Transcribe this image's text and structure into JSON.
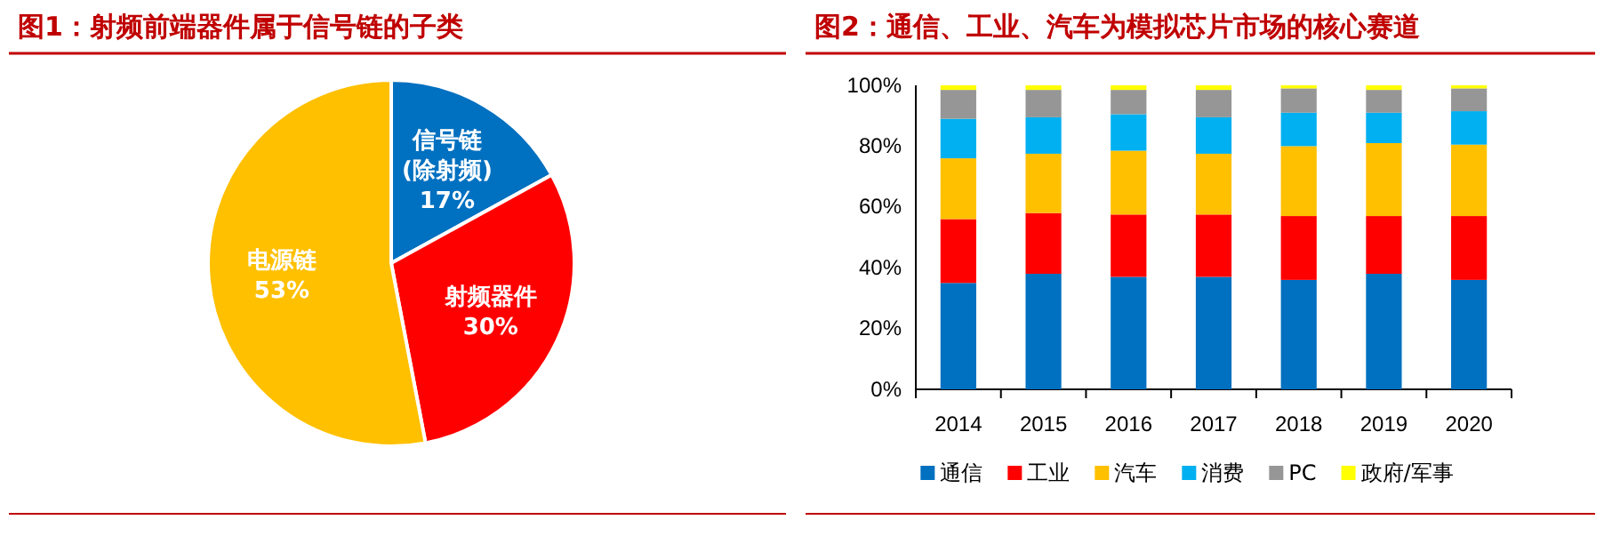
{
  "chart_data": [
    {
      "type": "pie",
      "title": "图1：射频前端器件属于信号链的子类",
      "categories": [
        "信号链\n(除射频)",
        "射频器件",
        "电源链"
      ],
      "values": [
        17,
        30,
        53
      ],
      "colors": [
        "#0070c0",
        "#ff0000",
        "#ffc000"
      ],
      "value_labels": [
        "17%",
        "30%",
        "53%"
      ]
    },
    {
      "type": "bar",
      "title": "图2：通信、工业、汽车为模拟芯片市场的核心赛道",
      "categories": [
        "2014",
        "2015",
        "2016",
        "2017",
        "2018",
        "2019",
        "2020"
      ],
      "stacked": true,
      "legend": "bottom",
      "ylim": [
        0,
        100
      ],
      "yticks": [
        {
          "value": 0,
          "label": "0%"
        },
        {
          "value": 20,
          "label": "20%"
        },
        {
          "value": 40,
          "label": "40%"
        },
        {
          "value": 60,
          "label": "60%"
        },
        {
          "value": 80,
          "label": "80%"
        },
        {
          "value": 100,
          "label": "100%"
        }
      ],
      "series": [
        {
          "name": "通信",
          "color": "#0070c0",
          "values": [
            35,
            38,
            37,
            37,
            36,
            38,
            36
          ]
        },
        {
          "name": "工业",
          "color": "#ff0000",
          "values": [
            21,
            20,
            20.5,
            20.5,
            21,
            19,
            21
          ]
        },
        {
          "name": "汽车",
          "color": "#ffc000",
          "values": [
            20,
            19.5,
            21,
            20,
            23,
            24,
            23.5
          ]
        },
        {
          "name": "消费",
          "color": "#00b0f0",
          "values": [
            13,
            12,
            12,
            12,
            11,
            10,
            11
          ]
        },
        {
          "name": "PC",
          "color": "#969696",
          "values": [
            9.5,
            9,
            8,
            9,
            8,
            7.5,
            7.5
          ]
        },
        {
          "name": "政府/军事",
          "color": "#ffff00",
          "values": [
            1.5,
            1.5,
            1.5,
            1.5,
            1,
            1.5,
            1
          ]
        }
      ]
    }
  ]
}
